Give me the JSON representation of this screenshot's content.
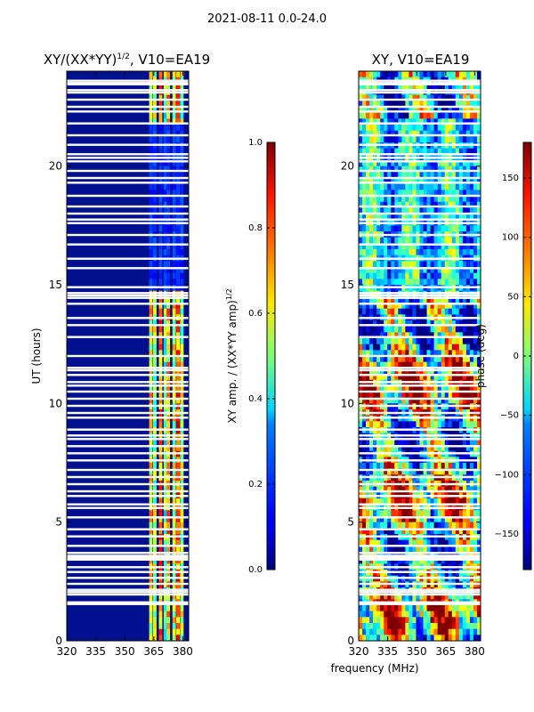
{
  "figure": {
    "suptitle": "2021-08-11 0.0-24.0",
    "xlabel_shared": "frequency (MHz)"
  },
  "chart_data": [
    {
      "type": "heatmap",
      "title": "XY/(XX*YY)^1/2, V10=EA19",
      "title_main": "XY/(XX*YY)",
      "title_exp": "1/2",
      "title_tail": ", V10=EA19",
      "xlabel": "",
      "ylabel": "UT (hours)",
      "xlim": [
        320,
        383
      ],
      "ylim": [
        0,
        24
      ],
      "xticks": [
        "320",
        "335",
        "350",
        "365",
        "380"
      ],
      "yticks": [
        "0",
        "5",
        "10",
        "15",
        "20"
      ],
      "colorbar": {
        "label": "XY amp. / (XX*YY amp)^1/2",
        "label_main": "XY amp. / (XX*YY amp)",
        "label_exp": "1/2",
        "range": [
          0.0,
          1.0
        ],
        "ticks": [
          "0.0",
          "0.2",
          "0.4",
          "0.6",
          "0.8",
          "1.0"
        ]
      },
      "colormap": "jet"
    },
    {
      "type": "heatmap",
      "title": "XY, V10=EA19",
      "xlabel": "frequency (MHz)",
      "ylabel": "",
      "xlim": [
        320,
        383
      ],
      "ylim": [
        0,
        24
      ],
      "xticks": [
        "320",
        "335",
        "350",
        "365",
        "380"
      ],
      "yticks": [
        "0",
        "5",
        "10",
        "15",
        "20"
      ],
      "colorbar": {
        "label": "phase (deg)",
        "range": [
          -180,
          180
        ],
        "ticks": [
          "−150",
          "−100",
          "−50",
          "0",
          "50",
          "100",
          "150"
        ]
      },
      "colormap": "jet"
    }
  ],
  "flagged_hours": [
    1.55,
    1.6,
    1.62,
    1.95,
    2.05,
    2.15,
    2.4,
    2.65,
    2.9,
    3.1,
    3.42,
    3.5,
    3.58,
    3.7,
    4.0,
    4.4,
    4.7,
    5.2,
    5.6,
    5.75,
    6.1,
    6.3,
    6.6,
    6.9,
    7.2,
    7.6,
    7.9,
    8.2,
    8.5,
    8.65,
    8.9,
    9.4,
    9.6,
    9.9,
    10.2,
    10.5,
    10.75,
    10.9,
    11.2,
    11.4,
    11.5,
    12.0,
    12.8,
    13.3,
    13.6,
    14.2,
    14.45,
    14.55,
    14.65,
    14.9,
    15.7,
    16.1,
    16.7,
    17.1,
    17.6,
    17.75,
    18.0,
    18.3,
    18.75,
    19.3,
    19.5,
    19.8,
    20.2,
    20.35,
    20.5,
    20.9,
    21.3,
    21.8,
    22.3,
    22.5,
    22.8,
    23.1,
    23.2,
    23.45,
    23.5,
    23.6
  ]
}
